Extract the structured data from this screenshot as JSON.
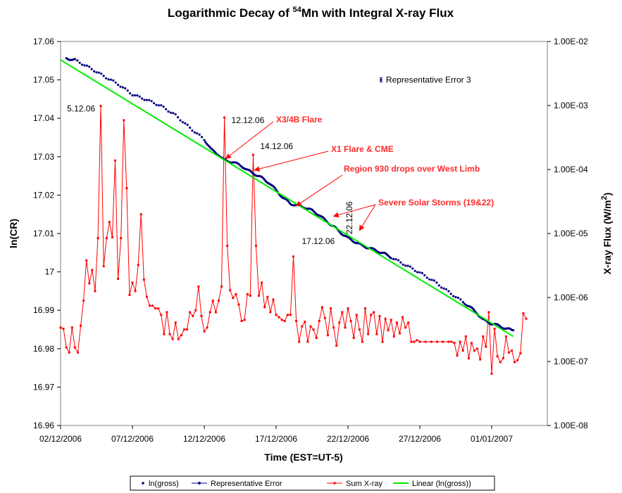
{
  "chart_data": {
    "type": "line",
    "title_main": "Logarithmic Decay of ",
    "title_sup": "54",
    "title_rest": "Mn with Integral X-ray Flux",
    "xlabel": "Time (EST=UT-5)",
    "ylabel_left": "ln(CR)",
    "ylabel_right_main": "X-ray Flux (W/m",
    "ylabel_right_sup": "2",
    "ylabel_right_end": ")",
    "x_range_days": [
      0,
      31.5
    ],
    "x_ticks": [
      {
        "day": 0,
        "label": "02/12/2006"
      },
      {
        "day": 5,
        "label": "07/12/2006"
      },
      {
        "day": 10,
        "label": "12/12/2006"
      },
      {
        "day": 15,
        "label": "17/12/2006"
      },
      {
        "day": 20,
        "label": "22/12/2006"
      },
      {
        "day": 25,
        "label": "27/12/2006"
      },
      {
        "day": 30,
        "label": "01/01/2007"
      }
    ],
    "y_left": {
      "min": 16.96,
      "max": 17.06,
      "ticks": [
        {
          "v": 17.06,
          "label": "17.06"
        },
        {
          "v": 17.05,
          "label": "17.05"
        },
        {
          "v": 17.04,
          "label": "17.04"
        },
        {
          "v": 17.03,
          "label": "17.03"
        },
        {
          "v": 17.02,
          "label": "17.02"
        },
        {
          "v": 17.01,
          "label": "17.01"
        },
        {
          "v": 17.0,
          "label": "17"
        },
        {
          "v": 16.99,
          "label": "16.99"
        },
        {
          "v": 16.98,
          "label": "16.98"
        },
        {
          "v": 16.97,
          "label": "16.97"
        },
        {
          "v": 16.96,
          "label": "16.96"
        }
      ]
    },
    "y_right": {
      "log_min": -8,
      "log_max": -2,
      "ticks": [
        {
          "e": -2,
          "label": "1.00E-02"
        },
        {
          "e": -3,
          "label": "1.00E-03"
        },
        {
          "e": -4,
          "label": "1.00E-04"
        },
        {
          "e": -5,
          "label": "1.00E-05"
        },
        {
          "e": -6,
          "label": "1.00E-06"
        },
        {
          "e": -7,
          "label": "1.00E-07"
        },
        {
          "e": -8,
          "label": "1.00E-08"
        }
      ]
    },
    "series": [
      {
        "name": "ln(gross)",
        "axis": "left",
        "color": "#000080",
        "points": [
          [
            0.4,
            17.0556
          ],
          [
            1.0,
            17.0552
          ],
          [
            2.0,
            17.0532
          ],
          [
            3.0,
            17.051
          ],
          [
            4.0,
            17.0489
          ],
          [
            5.0,
            17.0462
          ],
          [
            6.0,
            17.0448
          ],
          [
            7.0,
            17.0432
          ],
          [
            8.0,
            17.0408
          ],
          [
            9.0,
            17.0375
          ],
          [
            10.0,
            17.0345
          ],
          [
            10.5,
            17.0318
          ],
          [
            11.0,
            17.0305
          ],
          [
            11.4,
            17.029
          ],
          [
            12.0,
            17.0286
          ],
          [
            12.6,
            17.0276
          ],
          [
            13.0,
            17.0265
          ],
          [
            13.5,
            17.0255
          ],
          [
            14.0,
            17.0245
          ],
          [
            14.5,
            17.0232
          ],
          [
            15.0,
            17.0213
          ],
          [
            15.5,
            17.0192
          ],
          [
            16.0,
            17.0178
          ],
          [
            16.5,
            17.0172
          ],
          [
            17.0,
            17.0168
          ],
          [
            17.5,
            17.016
          ],
          [
            18.0,
            17.0148
          ],
          [
            18.5,
            17.0132
          ],
          [
            19.0,
            17.0118
          ],
          [
            19.5,
            17.0102
          ],
          [
            20.0,
            17.0088
          ],
          [
            20.5,
            17.0078
          ],
          [
            21.0,
            17.0068
          ],
          [
            21.5,
            17.0062
          ],
          [
            22.0,
            17.0055
          ],
          [
            22.5,
            17.0048
          ],
          [
            23.0,
            17.0038
          ],
          [
            24.0,
            17.0018
          ],
          [
            25.0,
            16.9998
          ],
          [
            26.0,
            16.9975
          ],
          [
            27.0,
            16.9948
          ],
          [
            28.0,
            16.9922
          ],
          [
            28.6,
            16.9905
          ],
          [
            29.0,
            16.9892
          ],
          [
            29.4,
            16.9875
          ],
          [
            30.0,
            16.9865
          ],
          [
            30.5,
            16.986
          ],
          [
            31.0,
            16.9852
          ],
          [
            31.5,
            16.9848
          ]
        ]
      },
      {
        "name": "Representative Error",
        "axis": "left",
        "color": "#000080",
        "points": [
          [
            22.3,
            17.05
          ]
        ]
      },
      {
        "name": "Sum X-ray",
        "axis": "left",
        "color": "#ff0000",
        "points": [
          [
            0.0,
            16.9855
          ],
          [
            0.2,
            16.9852
          ],
          [
            0.4,
            16.9803
          ],
          [
            0.6,
            16.979
          ],
          [
            0.8,
            16.9855
          ],
          [
            1.0,
            16.9803
          ],
          [
            1.2,
            16.979
          ],
          [
            1.4,
            16.986
          ],
          [
            1.6,
            16.9925
          ],
          [
            1.8,
            17.003
          ],
          [
            2.0,
            16.997
          ],
          [
            2.2,
            17.0005
          ],
          [
            2.4,
            16.995
          ],
          [
            2.6,
            17.0088
          ],
          [
            2.8,
            17.0432
          ],
          [
            3.0,
            17.0015
          ],
          [
            3.2,
            17.0088
          ],
          [
            3.4,
            17.013
          ],
          [
            3.6,
            17.009
          ],
          [
            3.8,
            17.029
          ],
          [
            4.0,
            16.9982
          ],
          [
            4.2,
            17.0088
          ],
          [
            4.4,
            17.0395
          ],
          [
            4.6,
            17.0218
          ],
          [
            4.8,
            16.994
          ],
          [
            5.0,
            16.9972
          ],
          [
            5.2,
            16.995
          ],
          [
            5.4,
            17.0018
          ],
          [
            5.6,
            17.015
          ],
          [
            5.8,
            16.998
          ],
          [
            6.0,
            16.9935
          ],
          [
            6.2,
            16.9912
          ],
          [
            6.4,
            16.9912
          ],
          [
            6.6,
            16.9905
          ],
          [
            6.8,
            16.9905
          ],
          [
            7.0,
            16.9888
          ],
          [
            7.2,
            16.9838
          ],
          [
            7.4,
            16.9895
          ],
          [
            7.6,
            16.9838
          ],
          [
            7.8,
            16.9825
          ],
          [
            8.0,
            16.9868
          ],
          [
            8.2,
            16.9825
          ],
          [
            8.4,
            16.9835
          ],
          [
            8.6,
            16.985
          ],
          [
            8.8,
            16.985
          ],
          [
            9.0,
            16.9895
          ],
          [
            9.2,
            16.9885
          ],
          [
            9.4,
            16.99
          ],
          [
            9.6,
            16.9962
          ],
          [
            9.8,
            16.9885
          ],
          [
            10.0,
            16.9845
          ],
          [
            10.2,
            16.9855
          ],
          [
            10.4,
            16.9895
          ],
          [
            10.6,
            16.9925
          ],
          [
            10.8,
            16.9895
          ],
          [
            11.0,
            16.9925
          ],
          [
            11.2,
            16.9962
          ],
          [
            11.4,
            17.0402
          ],
          [
            11.6,
            17.0068
          ],
          [
            11.8,
            16.9952
          ],
          [
            12.0,
            16.9932
          ],
          [
            12.2,
            16.9942
          ],
          [
            12.4,
            16.9915
          ],
          [
            12.6,
            16.9872
          ],
          [
            12.8,
            16.9875
          ],
          [
            13.0,
            16.9942
          ],
          [
            13.2,
            16.9938
          ],
          [
            13.4,
            17.0305
          ],
          [
            13.6,
            17.0068
          ],
          [
            13.8,
            16.9938
          ],
          [
            14.0,
            16.9972
          ],
          [
            14.2,
            16.9908
          ],
          [
            14.4,
            16.9935
          ],
          [
            14.6,
            16.9895
          ],
          [
            14.8,
            16.9928
          ],
          [
            15.0,
            16.9888
          ],
          [
            15.2,
            16.9882
          ],
          [
            15.4,
            16.9875
          ],
          [
            15.6,
            16.9872
          ],
          [
            15.8,
            16.9888
          ],
          [
            16.0,
            16.9888
          ],
          [
            16.2,
            17.004
          ],
          [
            16.4,
            16.9872
          ],
          [
            16.6,
            16.9818
          ],
          [
            16.8,
            16.9858
          ],
          [
            17.0,
            16.987
          ],
          [
            17.2,
            16.9818
          ],
          [
            17.4,
            16.9858
          ],
          [
            17.6,
            16.985
          ],
          [
            17.8,
            16.9828
          ],
          [
            18.0,
            16.9872
          ],
          [
            18.2,
            16.9908
          ],
          [
            18.4,
            16.988
          ],
          [
            18.6,
            16.9835
          ],
          [
            18.8,
            16.9905
          ],
          [
            19.0,
            16.9855
          ],
          [
            19.2,
            16.9808
          ],
          [
            19.4,
            16.9868
          ],
          [
            19.6,
            16.9895
          ],
          [
            19.8,
            16.9855
          ],
          [
            20.0,
            16.9905
          ],
          [
            20.2,
            16.9872
          ],
          [
            20.4,
            16.9828
          ],
          [
            20.6,
            16.9888
          ],
          [
            20.8,
            16.985
          ],
          [
            21.0,
            16.9818
          ],
          [
            21.2,
            16.9905
          ],
          [
            21.4,
            16.9838
          ],
          [
            21.6,
            16.9888
          ],
          [
            21.8,
            16.9895
          ],
          [
            22.0,
            16.9838
          ],
          [
            22.2,
            16.9885
          ],
          [
            22.4,
            16.9818
          ],
          [
            22.6,
            16.9878
          ],
          [
            22.8,
            16.9848
          ],
          [
            23.0,
            16.9875
          ],
          [
            23.2,
            16.9832
          ],
          [
            23.4,
            16.9868
          ],
          [
            23.6,
            16.984
          ],
          [
            23.8,
            16.9882
          ],
          [
            24.0,
            16.9855
          ],
          [
            24.2,
            16.9868
          ],
          [
            24.4,
            16.9818
          ],
          [
            24.6,
            16.9818
          ],
          [
            24.8,
            16.9822
          ],
          [
            25.0,
            16.9818
          ],
          [
            25.4,
            16.9818
          ],
          [
            25.8,
            16.9818
          ],
          [
            26.2,
            16.9818
          ],
          [
            26.6,
            16.9818
          ],
          [
            27.0,
            16.9818
          ],
          [
            27.2,
            16.9818
          ],
          [
            27.4,
            16.9815
          ],
          [
            27.6,
            16.9782
          ],
          [
            27.8,
            16.9818
          ],
          [
            28.0,
            16.9795
          ],
          [
            28.2,
            16.9832
          ],
          [
            28.4,
            16.9775
          ],
          [
            28.6,
            16.9815
          ],
          [
            28.8,
            16.9795
          ],
          [
            29.0,
            16.98
          ],
          [
            29.2,
            16.9772
          ],
          [
            29.4,
            16.9832
          ],
          [
            29.6,
            16.9805
          ],
          [
            29.8,
            16.9895
          ],
          [
            30.0,
            16.9735
          ],
          [
            30.2,
            16.9852
          ],
          [
            30.4,
            16.978
          ],
          [
            30.6,
            16.9765
          ],
          [
            30.8,
            16.9775
          ],
          [
            31.0,
            16.9832
          ],
          [
            31.2,
            16.979
          ],
          [
            31.4,
            16.9795
          ],
          [
            31.6,
            16.9765
          ],
          [
            31.8,
            16.977
          ],
          [
            32.0,
            16.9788
          ],
          [
            32.2,
            16.9892
          ],
          [
            32.4,
            16.9878
          ]
        ]
      },
      {
        "name": "Linear (ln(gross))",
        "axis": "left",
        "color": "#00ee00",
        "points": [
          [
            0.0,
            17.0552
          ],
          [
            31.5,
            16.9832
          ]
        ]
      }
    ],
    "legend": [
      "ln(gross)",
      "Representative Error",
      "Sum X-ray",
      "Linear (ln(gross))"
    ],
    "legend_position": "bottom",
    "error_marker": {
      "day": 22.3,
      "value": 17.05,
      "label": "Representative Error 3"
    },
    "annotations": [
      {
        "text": "X3/4B Flare",
        "arrow_to_day": 11.5,
        "arrow_to_value": 17.0295
      },
      {
        "text": "X1 Flare & CME",
        "arrow_to_day": 13.5,
        "arrow_to_value": 17.0265
      },
      {
        "text": "Region 930  drops over West Limb",
        "arrow_to_day": 16.4,
        "arrow_to_value": 17.0172
      },
      {
        "text": "Severe Solar Storms (19&22)",
        "arrow_to_days": [
          19.0,
          20.8
        ],
        "arrow_to_values": [
          17.0145,
          17.0108
        ]
      }
    ],
    "date_labels": [
      {
        "text": "5.12.06",
        "day": 2.8,
        "value": 17.0432
      },
      {
        "text": "12.12.06",
        "day": 11.4,
        "value": 17.0402
      },
      {
        "text": "14.12.06",
        "day": 13.4,
        "value": 17.0305
      },
      {
        "text": "17.12.06",
        "day": 16.2,
        "value": 17.004
      },
      {
        "text": "22.12.06",
        "day": 20.3,
        "value": 17.012
      }
    ]
  }
}
